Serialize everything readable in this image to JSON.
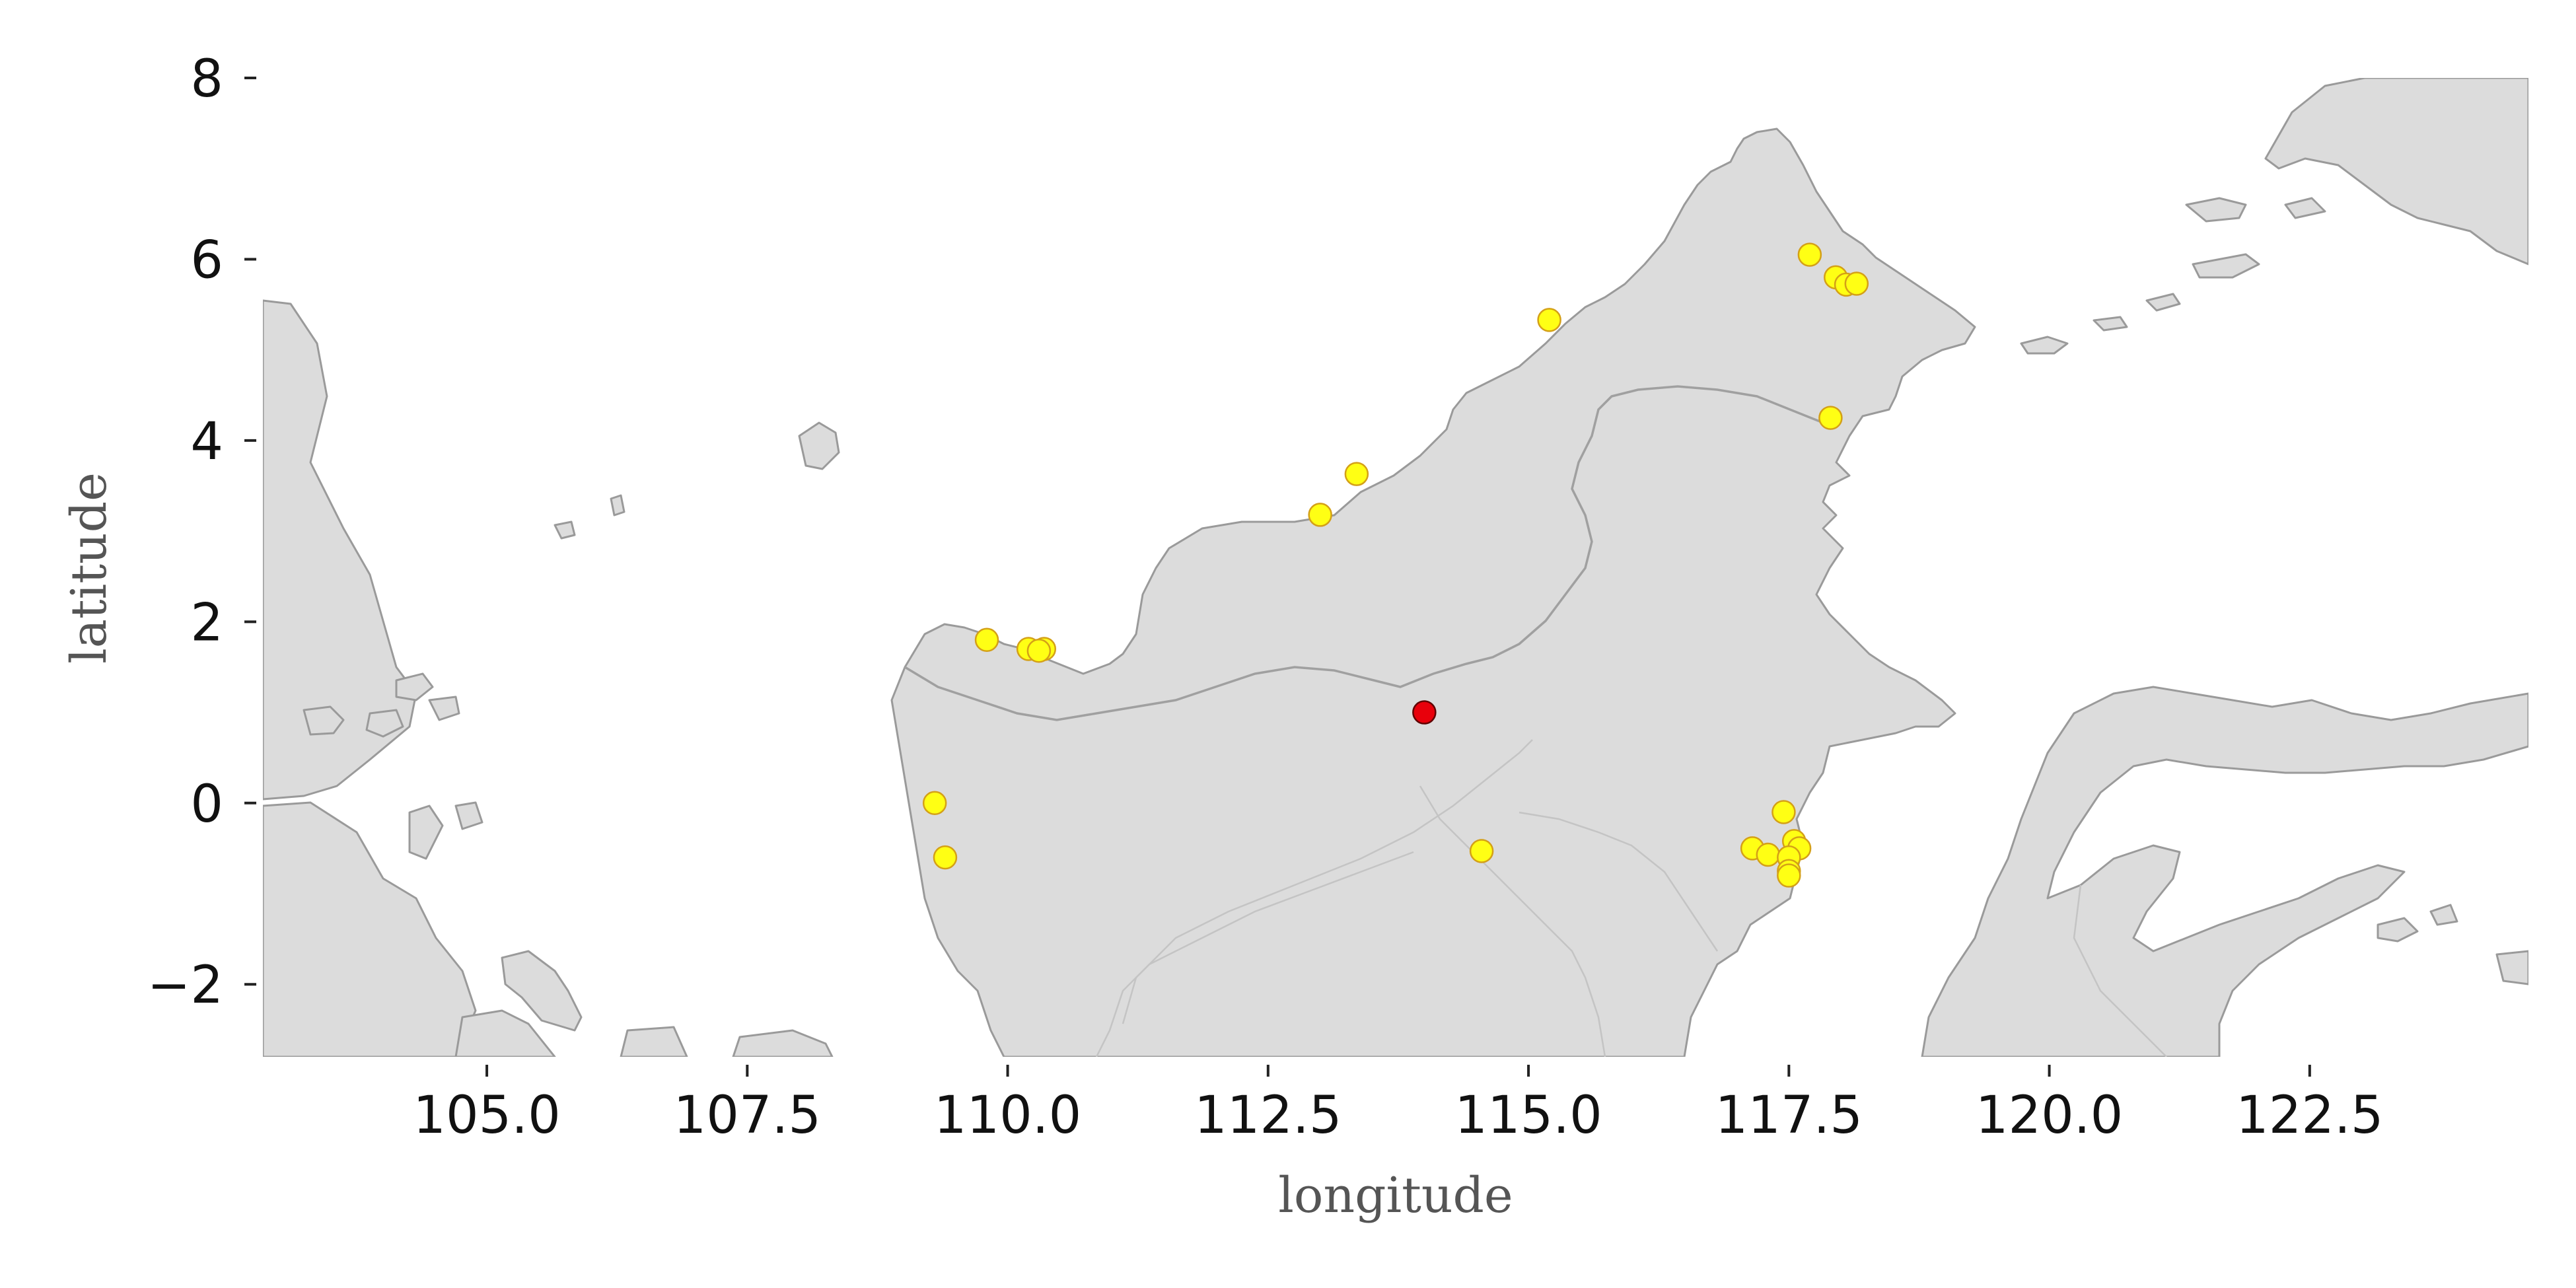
{
  "chart_data": {
    "type": "scatter",
    "xlabel": "longitude",
    "ylabel": "latitude",
    "xlim": [
      102.85,
      124.6
    ],
    "ylim": [
      -2.8,
      8.0
    ],
    "xticks": [
      "105.0",
      "107.5",
      "110.0",
      "112.5",
      "115.0",
      "117.5",
      "120.0",
      "122.5"
    ],
    "yticks": [
      "8",
      "6",
      "4",
      "2",
      "0",
      "−2"
    ],
    "xtick_values": [
      105.0,
      107.5,
      110.0,
      112.5,
      115.0,
      117.5,
      120.0,
      122.5
    ],
    "ytick_values": [
      8,
      6,
      4,
      2,
      0,
      -2
    ],
    "grid": false,
    "background": "basemap of Borneo and surrounding islands",
    "colors": {
      "land": "#dcdcdc",
      "coast": "#9a9a9a",
      "point": "#ffff14",
      "point_edge": "#d4a017",
      "highlight": "#e8000b",
      "highlight_edge": "#600000"
    },
    "series": [
      {
        "marker": "circle",
        "color": "#ffff14",
        "points": [
          [
            109.8,
            1.8
          ],
          [
            110.2,
            1.7
          ],
          [
            110.35,
            1.7
          ],
          [
            110.3,
            1.68
          ],
          [
            109.3,
            0.0
          ],
          [
            109.4,
            -0.6
          ],
          [
            113.0,
            3.18
          ],
          [
            113.35,
            3.63
          ],
          [
            115.2,
            5.33
          ],
          [
            117.7,
            6.05
          ],
          [
            117.95,
            5.8
          ],
          [
            118.05,
            5.72
          ],
          [
            118.15,
            5.73
          ],
          [
            117.9,
            4.25
          ],
          [
            114.55,
            -0.53
          ],
          [
            117.45,
            -0.1
          ],
          [
            117.55,
            -0.42
          ],
          [
            117.6,
            -0.5
          ],
          [
            117.15,
            -0.5
          ],
          [
            117.3,
            -0.57
          ],
          [
            117.5,
            -0.6
          ],
          [
            117.5,
            -0.75
          ],
          [
            117.5,
            -0.8
          ]
        ]
      },
      {
        "marker": "circle",
        "color": "#e8000b",
        "points": [
          [
            114.0,
            1.0
          ]
        ]
      }
    ]
  }
}
